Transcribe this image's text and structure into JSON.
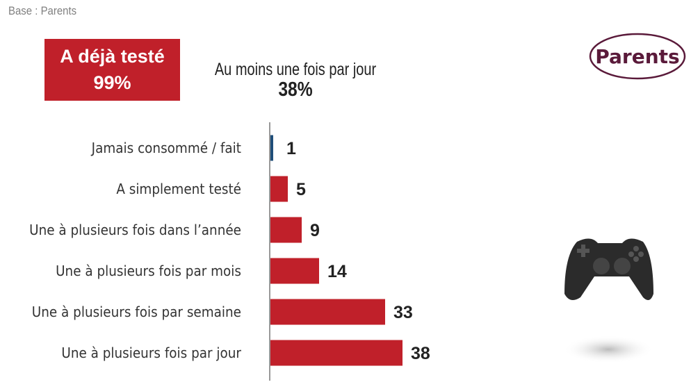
{
  "header": {
    "base": "Base : Parents",
    "tested_label": "A déjà testé",
    "tested_value": "99%",
    "daily_label": "Au moins une fois par jour",
    "daily_value": "38%",
    "logo": "Parents"
  },
  "colors": {
    "bar": "#c0202a",
    "first_bar": "#1f4e79",
    "logo": "#5a1a3a"
  },
  "icons": {
    "pad": "gamepad-icon"
  },
  "chart_data": {
    "type": "bar",
    "orientation": "horizontal",
    "categories": [
      "Jamais consommé / fait",
      "A simplement testé",
      "Une à plusieurs fois dans l’année",
      "Une à plusieurs fois par mois",
      "Une à plusieurs fois par semaine",
      "Une à plusieurs fois par jour"
    ],
    "values": [
      1,
      5,
      9,
      14,
      33,
      38
    ],
    "data_labels": [
      "1",
      "5",
      "9",
      "14",
      "33",
      "38"
    ],
    "xlim": [
      0,
      40
    ],
    "grid": false,
    "legend": "none"
  }
}
